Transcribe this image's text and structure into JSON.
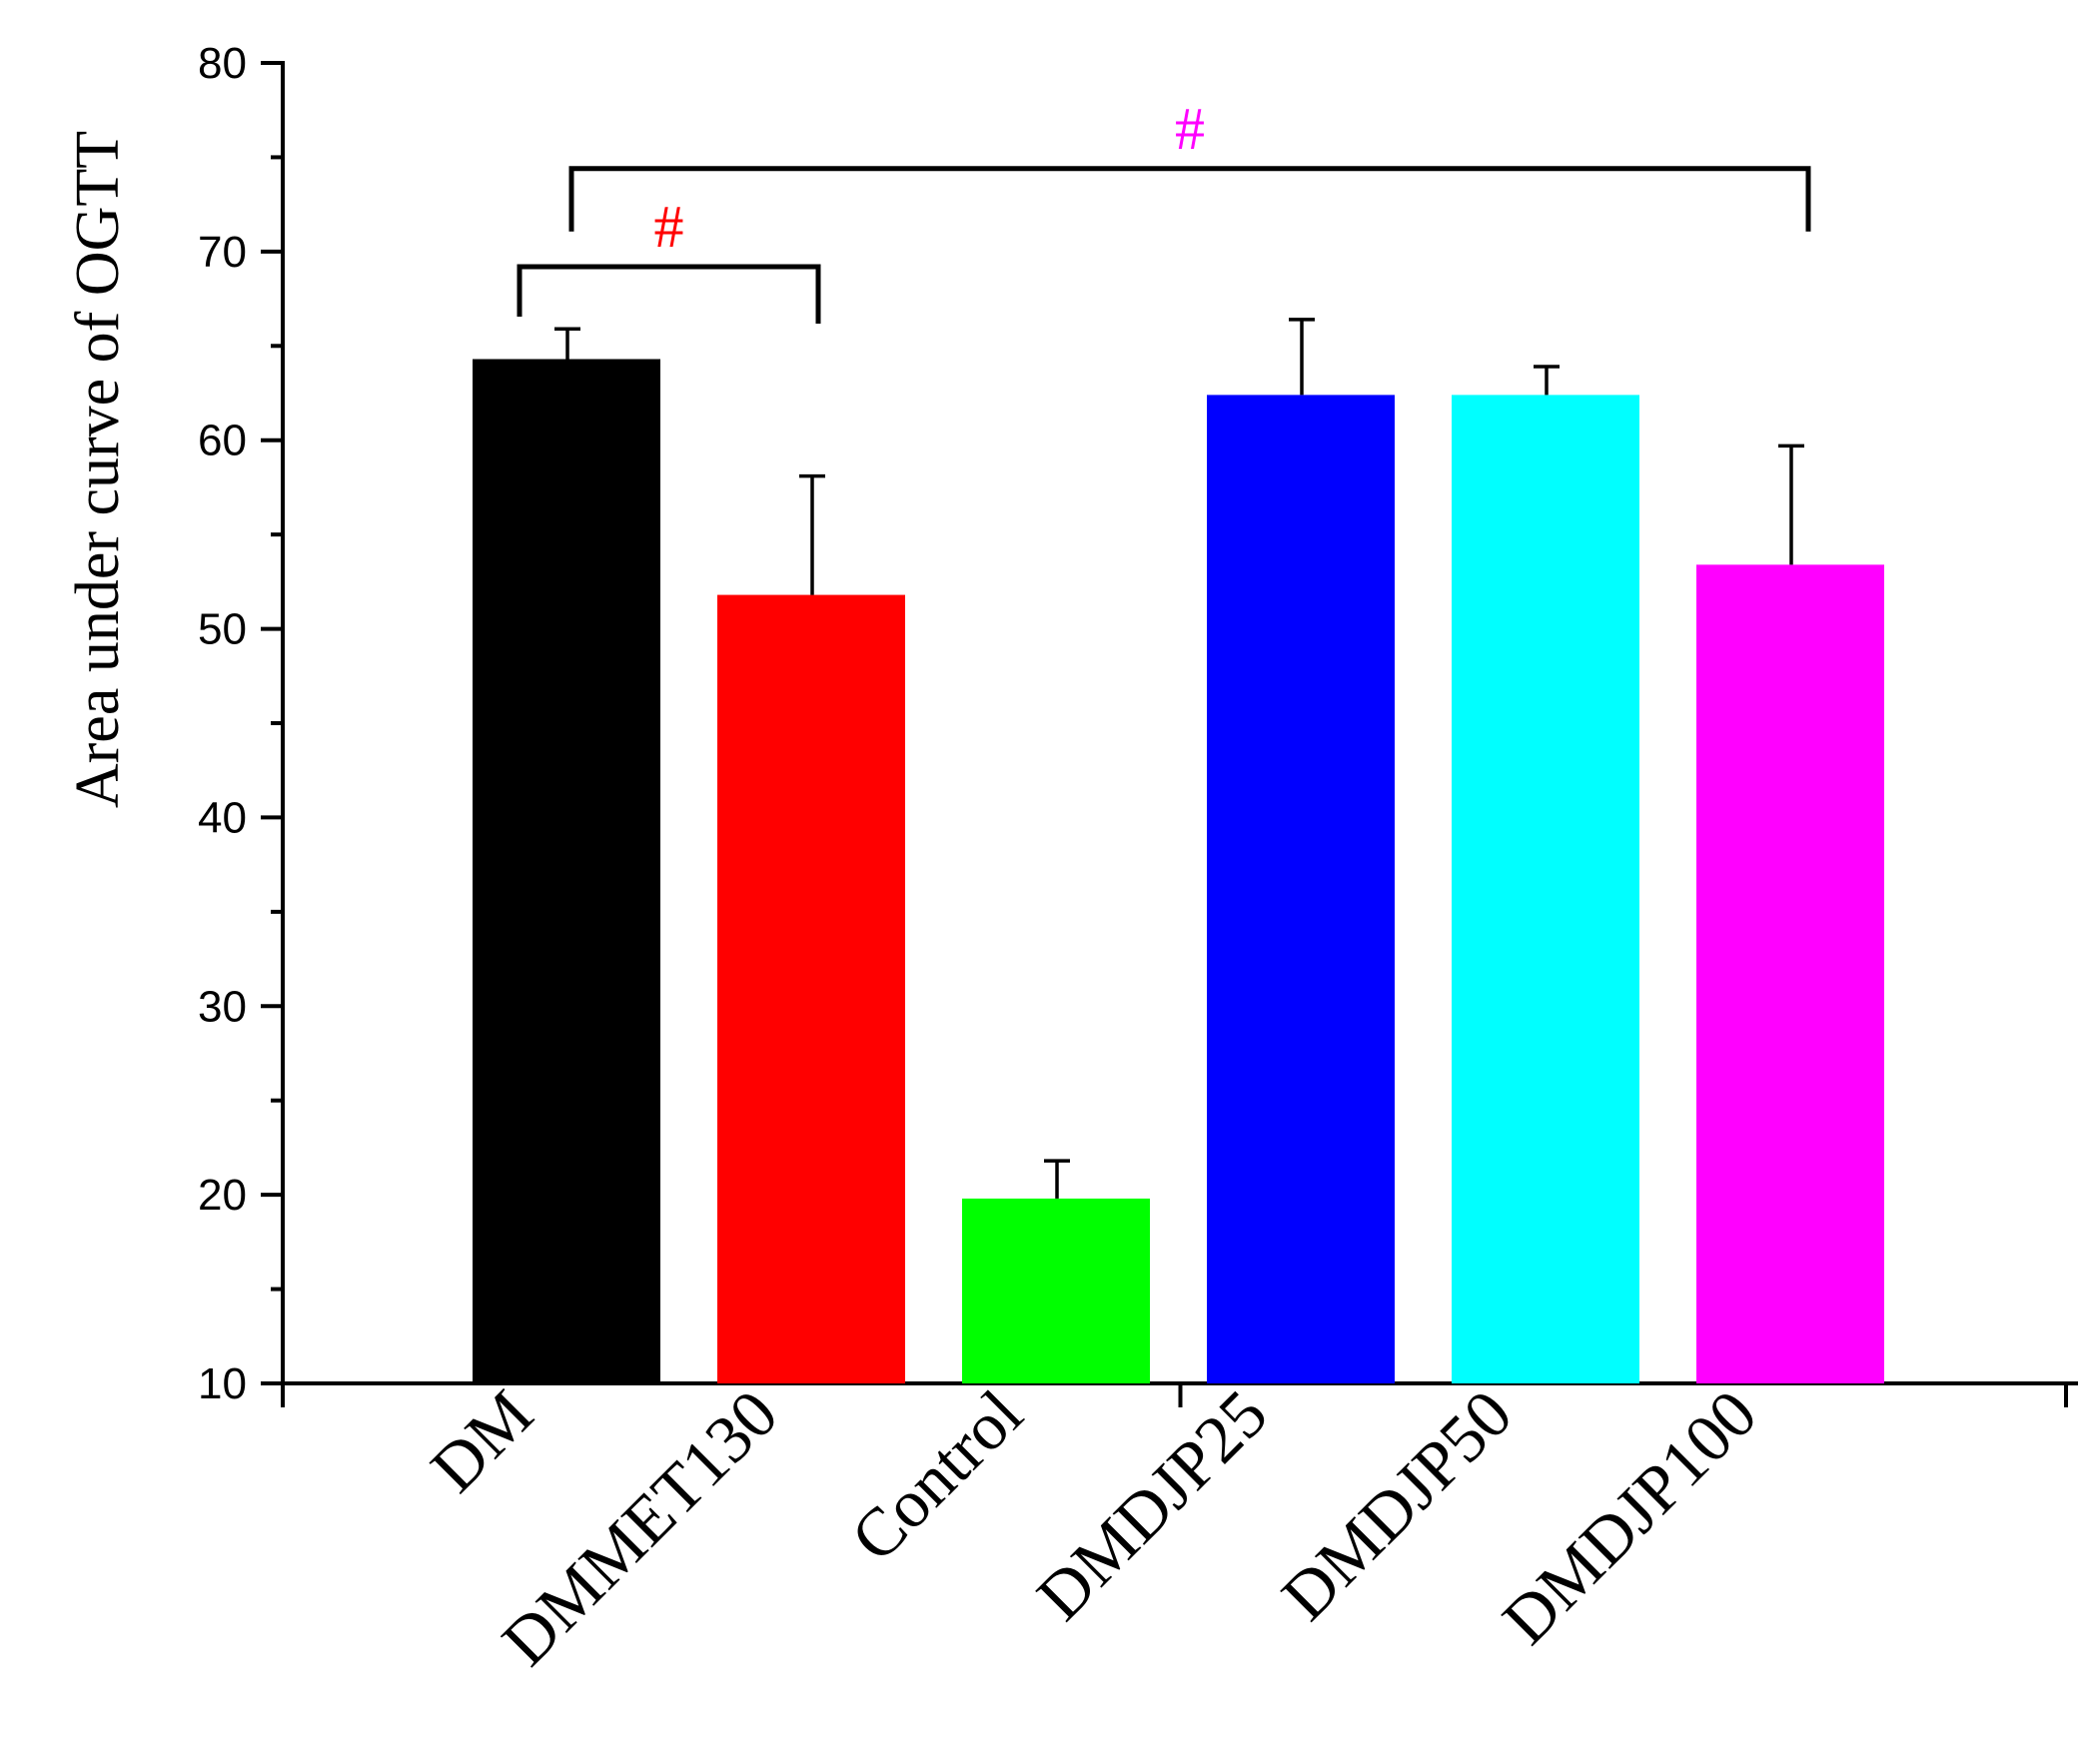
{
  "chart_data": {
    "type": "bar",
    "title": "",
    "xlabel": "",
    "ylabel": "Area under curve of OGTT",
    "categories": [
      "DM",
      "DMMET130",
      "Control",
      "DMDJP25",
      "DMDJP50",
      "DMDJP100"
    ],
    "values": [
      64.3,
      51.8,
      19.8,
      62.4,
      62.4,
      53.4
    ],
    "errors": [
      1.6,
      6.3,
      2.0,
      4.0,
      1.5,
      6.3
    ],
    "colors": [
      "#000000",
      "#ff0000",
      "#00ff00",
      "#0000ff",
      "#00ffff",
      "#ff00ff"
    ],
    "ylim": [
      10,
      80
    ],
    "yticks": [
      10,
      20,
      30,
      40,
      50,
      60,
      70,
      80
    ],
    "minor_ticks_per_interval": 1,
    "annotations": [
      {
        "label": "#",
        "from": 0,
        "to": 1,
        "level": 69.2,
        "color": "#ff0000"
      },
      {
        "label": "#",
        "from": 0,
        "to": 5,
        "level": 74.4,
        "color": "#ff00ff"
      }
    ]
  }
}
